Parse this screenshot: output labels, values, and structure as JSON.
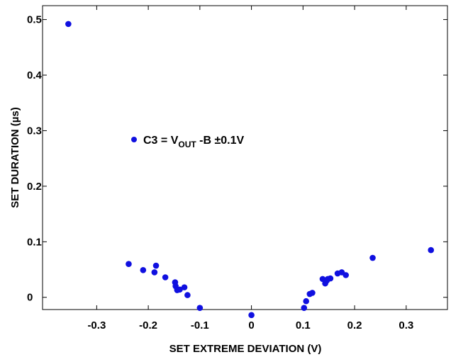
{
  "chart_data": {
    "type": "scatter",
    "title": "",
    "xlabel": "SET EXTREME DEVIATION (V)",
    "ylabel": "SET DURATION (µs)",
    "xlim": [
      -0.405,
      0.38
    ],
    "ylim": [
      -0.022,
      0.525
    ],
    "x_ticks": [
      -0.3,
      -0.2,
      -0.1,
      0,
      0.1,
      0.2,
      0.3
    ],
    "x_tick_labels": [
      "-0.3",
      "-0.2",
      "-0.1",
      "0",
      "0.1",
      "0.2",
      "0.3"
    ],
    "y_ticks": [
      0,
      0.1,
      0.2,
      0.3,
      0.4,
      0.5
    ],
    "y_tick_labels": [
      "0",
      "0.1",
      "0.2",
      "0.3",
      "0.4",
      "0.5"
    ],
    "grid": false,
    "legend_position": "upper-left",
    "marker_color": "#1010e0",
    "series": [
      {
        "legend": {
          "prefix": "C3 = V",
          "subscript": "OUT",
          "suffix": " -B ±0.1V"
        },
        "points": [
          {
            "x": -0.355,
            "y": 0.492
          },
          {
            "x": -0.238,
            "y": 0.06
          },
          {
            "x": -0.21,
            "y": 0.049
          },
          {
            "x": -0.188,
            "y": 0.045
          },
          {
            "x": -0.185,
            "y": 0.057
          },
          {
            "x": -0.167,
            "y": 0.036
          },
          {
            "x": -0.148,
            "y": 0.027
          },
          {
            "x": -0.147,
            "y": 0.02
          },
          {
            "x": -0.144,
            "y": 0.013
          },
          {
            "x": -0.139,
            "y": 0.014
          },
          {
            "x": -0.13,
            "y": 0.018
          },
          {
            "x": -0.124,
            "y": 0.004
          },
          {
            "x": -0.1,
            "y": -0.019
          },
          {
            "x": 0.0,
            "y": -0.032
          },
          {
            "x": 0.102,
            "y": -0.019
          },
          {
            "x": 0.106,
            "y": -0.007
          },
          {
            "x": 0.113,
            "y": 0.006
          },
          {
            "x": 0.118,
            "y": 0.008
          },
          {
            "x": 0.138,
            "y": 0.033
          },
          {
            "x": 0.143,
            "y": 0.025
          },
          {
            "x": 0.146,
            "y": 0.03
          },
          {
            "x": 0.148,
            "y": 0.033
          },
          {
            "x": 0.153,
            "y": 0.034
          },
          {
            "x": 0.167,
            "y": 0.043
          },
          {
            "x": 0.175,
            "y": 0.045
          },
          {
            "x": 0.183,
            "y": 0.04
          },
          {
            "x": 0.235,
            "y": 0.071
          },
          {
            "x": 0.348,
            "y": 0.085
          }
        ]
      }
    ]
  }
}
